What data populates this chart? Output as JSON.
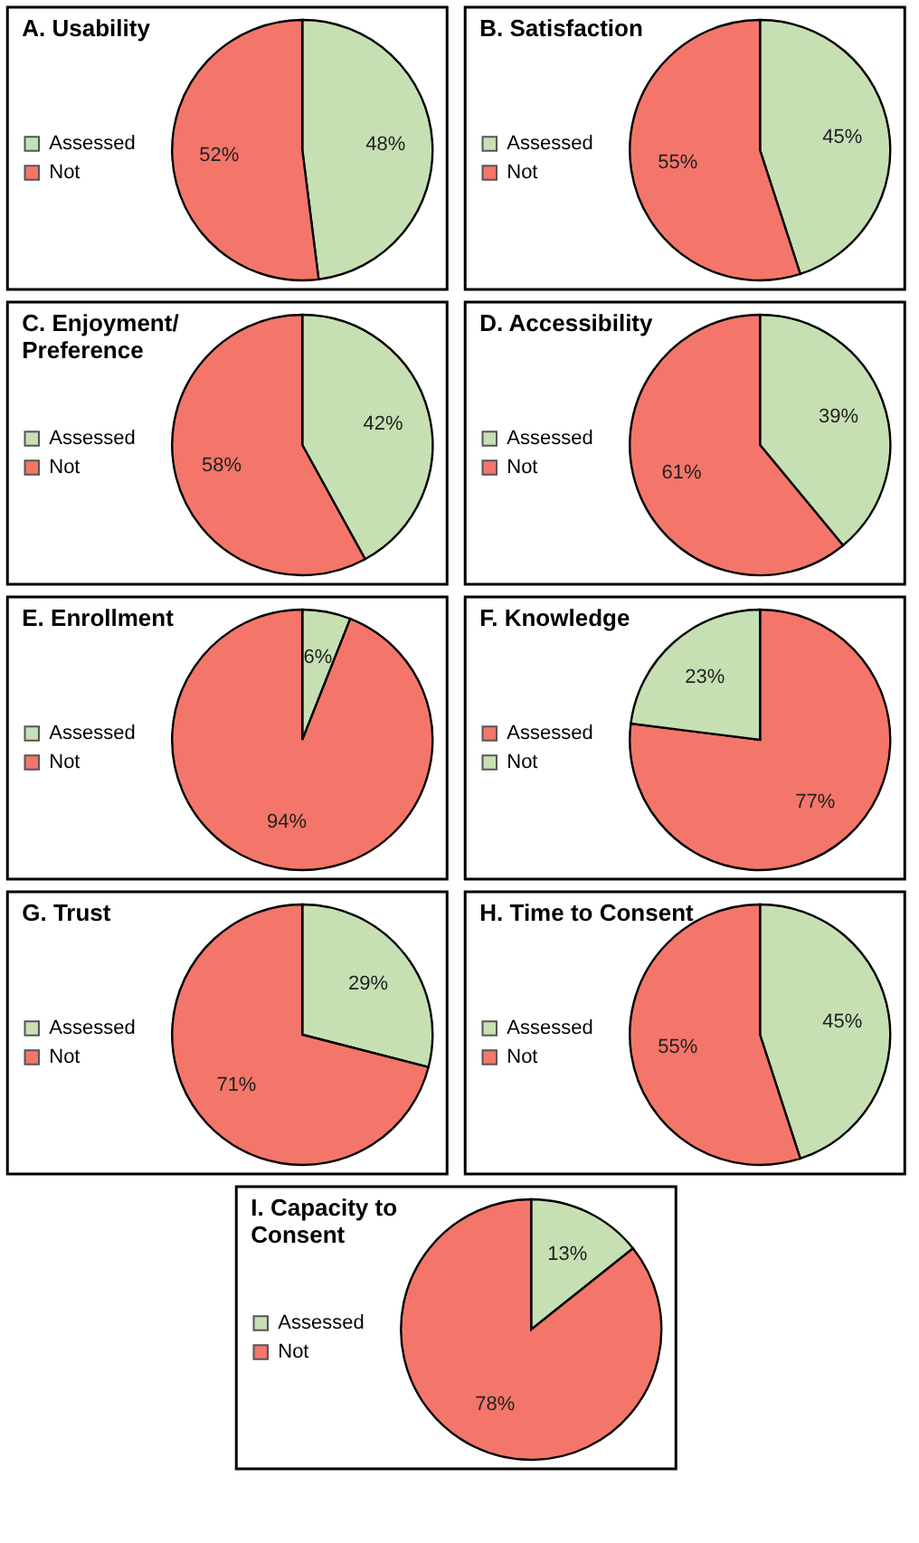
{
  "chart_data": [
    {
      "type": "pie",
      "title": "A. Usability",
      "categories": [
        "Assessed",
        "Not"
      ],
      "values": [
        48,
        52
      ],
      "value_labels": [
        "48%",
        "52%"
      ],
      "colors": [
        "#c6e0b4",
        "#f4766a"
      ],
      "legend": "left"
    },
    {
      "type": "pie",
      "title": "B. Satisfaction",
      "categories": [
        "Assessed",
        "Not"
      ],
      "values": [
        45,
        55
      ],
      "value_labels": [
        "45%",
        "55%"
      ],
      "colors": [
        "#c6e0b4",
        "#f4766a"
      ],
      "legend": "left"
    },
    {
      "type": "pie",
      "title": "C. Enjoyment/ Preference",
      "categories": [
        "Assessed",
        "Not"
      ],
      "values": [
        42,
        58
      ],
      "value_labels": [
        "42%",
        "58%"
      ],
      "colors": [
        "#c6e0b4",
        "#f4766a"
      ],
      "legend": "left"
    },
    {
      "type": "pie",
      "title": "D. Accessibility",
      "categories": [
        "Assessed",
        "Not"
      ],
      "values": [
        39,
        61
      ],
      "value_labels": [
        "39%",
        "61%"
      ],
      "colors": [
        "#c6e0b4",
        "#f4766a"
      ],
      "legend": "left"
    },
    {
      "type": "pie",
      "title": "E. Enrollment",
      "categories": [
        "Assessed",
        "Not"
      ],
      "values": [
        6,
        94
      ],
      "value_labels": [
        "6%",
        "94%"
      ],
      "colors": [
        "#c6e0b4",
        "#f4766a"
      ],
      "legend": "left"
    },
    {
      "type": "pie",
      "title": "F. Knowledge",
      "categories": [
        "Assessed",
        "Not"
      ],
      "values": [
        77,
        23
      ],
      "value_labels": [
        "77%",
        "23%"
      ],
      "colors": [
        "#f4766a",
        "#c6e0b4"
      ],
      "legend": "left"
    },
    {
      "type": "pie",
      "title": "G. Trust",
      "categories": [
        "Assessed",
        "Not"
      ],
      "values": [
        29,
        71
      ],
      "value_labels": [
        "29%",
        "71%"
      ],
      "colors": [
        "#c6e0b4",
        "#f4766a"
      ],
      "legend": "left"
    },
    {
      "type": "pie",
      "title": "H. Time to Consent",
      "categories": [
        "Assessed",
        "Not"
      ],
      "values": [
        45,
        55
      ],
      "value_labels": [
        "45%",
        "55%"
      ],
      "colors": [
        "#c6e0b4",
        "#f4766a"
      ],
      "legend": "left"
    },
    {
      "type": "pie",
      "title": "I. Capacity to Consent",
      "categories": [
        "Assessed",
        "Not"
      ],
      "values": [
        13,
        78
      ],
      "value_labels": [
        "13%",
        "78%"
      ],
      "colors": [
        "#c6e0b4",
        "#f4766a"
      ],
      "legend": "left"
    }
  ]
}
